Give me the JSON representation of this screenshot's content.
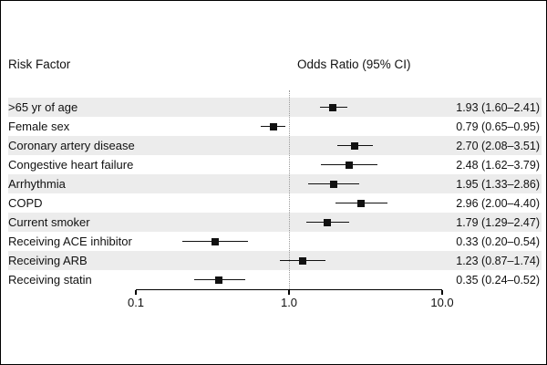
{
  "chart_data": {
    "type": "forest",
    "title": "",
    "col_headers": {
      "left": "Risk Factor",
      "right": "Odds Ratio (95% CI)"
    },
    "x_axis": {
      "scale": "log",
      "min": 0.1,
      "max": 10.0,
      "ticks": [
        0.1,
        1.0,
        10.0
      ],
      "tick_labels": [
        "0.1",
        "1.0",
        "10.0"
      ],
      "reference_line": 1.0
    },
    "legend": "none",
    "rows": [
      {
        "label": ">65 yr of age",
        "or": 1.93,
        "lo": 1.6,
        "hi": 2.41,
        "text": "1.93 (1.60–2.41)"
      },
      {
        "label": "Female sex",
        "or": 0.79,
        "lo": 0.65,
        "hi": 0.95,
        "text": "0.79 (0.65–0.95)"
      },
      {
        "label": "Coronary artery disease",
        "or": 2.7,
        "lo": 2.08,
        "hi": 3.51,
        "text": "2.70 (2.08–3.51)"
      },
      {
        "label": "Congestive heart failure",
        "or": 2.48,
        "lo": 1.62,
        "hi": 3.79,
        "text": "2.48 (1.62–3.79)"
      },
      {
        "label": "Arrhythmia",
        "or": 1.95,
        "lo": 1.33,
        "hi": 2.86,
        "text": "1.95 (1.33–2.86)"
      },
      {
        "label": "COPD",
        "or": 2.96,
        "lo": 2.0,
        "hi": 4.4,
        "text": "2.96 (2.00–4.40)"
      },
      {
        "label": "Current smoker",
        "or": 1.79,
        "lo": 1.29,
        "hi": 2.47,
        "text": "1.79 (1.29–2.47)"
      },
      {
        "label": "Receiving ACE inhibitor",
        "or": 0.33,
        "lo": 0.2,
        "hi": 0.54,
        "text": "0.33 (0.20–0.54)"
      },
      {
        "label": "Receiving ARB",
        "or": 1.23,
        "lo": 0.87,
        "hi": 1.74,
        "text": "1.23 (0.87–1.74)"
      },
      {
        "label": "Receiving statin",
        "or": 0.35,
        "lo": 0.24,
        "hi": 0.52,
        "text": "0.35 (0.24–0.52)"
      }
    ]
  }
}
